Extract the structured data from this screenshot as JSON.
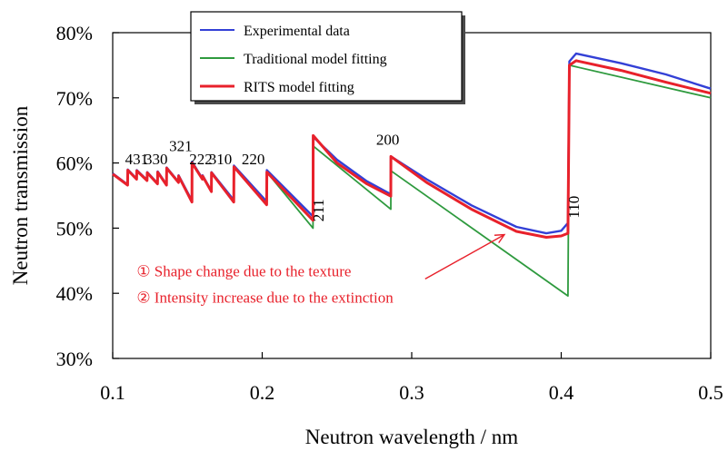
{
  "chart_data": {
    "type": "line",
    "title": "",
    "xlabel": "Neutron wavelength / nm",
    "ylabel": "Neutron transmission",
    "xlim": [
      0.1,
      0.5
    ],
    "ylim": [
      30,
      80
    ],
    "x_ticks": [
      {
        "value": 0.1,
        "label": "0.1"
      },
      {
        "value": 0.2,
        "label": "0.2"
      },
      {
        "value": 0.3,
        "label": "0.3"
      },
      {
        "value": 0.4,
        "label": "0.4"
      },
      {
        "value": 0.5,
        "label": "0.5"
      }
    ],
    "y_ticks": [
      {
        "value": 30,
        "label": "30%"
      },
      {
        "value": 40,
        "label": "40%"
      },
      {
        "value": 50,
        "label": "50%"
      },
      {
        "value": 60,
        "label": "60%"
      },
      {
        "value": 70,
        "label": "70%"
      },
      {
        "value": 80,
        "label": "80%"
      }
    ],
    "grid": false,
    "legend_position": "top-center",
    "series": [
      {
        "name": "Traditional model fitting",
        "color": "#2e9a3e",
        "x": [
          0.1,
          0.11,
          0.1101,
          0.116,
          0.1161,
          0.123,
          0.1231,
          0.13,
          0.1301,
          0.136,
          0.1361,
          0.144,
          0.1441,
          0.153,
          0.1531,
          0.16,
          0.1601,
          0.166,
          0.1661,
          0.181,
          0.1811,
          0.203,
          0.2031,
          0.234,
          0.2341,
          0.286,
          0.2861,
          0.4045,
          0.4055,
          0.5
        ],
        "y": [
          58.3,
          56.6,
          58.9,
          57.5,
          58.8,
          57.3,
          58.5,
          56.8,
          58.6,
          56.6,
          59.2,
          57.0,
          58.0,
          54.0,
          60.0,
          57.5,
          58.0,
          55.6,
          58.5,
          54.0,
          59.4,
          53.6,
          58.6,
          50.0,
          62.6,
          52.9,
          58.8,
          39.6,
          75.0,
          70.0
        ]
      },
      {
        "name": "Experimental data",
        "color": "#3340d6",
        "x": [
          0.1,
          0.11,
          0.1101,
          0.116,
          0.1161,
          0.123,
          0.1231,
          0.13,
          0.1301,
          0.136,
          0.1361,
          0.144,
          0.1441,
          0.153,
          0.1531,
          0.16,
          0.1601,
          0.166,
          0.1661,
          0.181,
          0.1811,
          0.203,
          0.2031,
          0.234,
          0.2341,
          0.25,
          0.27,
          0.286,
          0.2861,
          0.31,
          0.34,
          0.37,
          0.39,
          0.4,
          0.4045,
          0.4055,
          0.41,
          0.44,
          0.47,
          0.5
        ],
        "y": [
          58.4,
          56.7,
          59.0,
          57.6,
          58.9,
          57.4,
          58.6,
          56.9,
          58.7,
          56.7,
          59.3,
          57.1,
          58.1,
          54.2,
          60.2,
          57.6,
          58.1,
          55.7,
          58.6,
          54.3,
          59.6,
          54.1,
          58.9,
          51.8,
          64.0,
          60.5,
          57.2,
          55.2,
          61.0,
          57.5,
          53.5,
          50.2,
          49.2,
          49.6,
          50.8,
          75.6,
          76.8,
          75.3,
          73.6,
          71.4
        ]
      },
      {
        "name": "RITS model fitting",
        "color": "#e8212b",
        "x": [
          0.1,
          0.11,
          0.1101,
          0.116,
          0.1161,
          0.123,
          0.1231,
          0.13,
          0.1301,
          0.136,
          0.1361,
          0.144,
          0.1441,
          0.153,
          0.1531,
          0.16,
          0.1601,
          0.166,
          0.1661,
          0.181,
          0.1811,
          0.203,
          0.2031,
          0.234,
          0.2341,
          0.25,
          0.27,
          0.286,
          0.2861,
          0.31,
          0.34,
          0.37,
          0.39,
          0.4,
          0.4045,
          0.4055,
          0.41,
          0.44,
          0.47,
          0.5
        ],
        "y": [
          58.3,
          56.6,
          58.9,
          57.5,
          58.8,
          57.3,
          58.5,
          56.8,
          58.6,
          56.6,
          59.2,
          57.0,
          58.0,
          54.0,
          60.0,
          57.5,
          58.0,
          55.6,
          58.5,
          54.0,
          59.4,
          53.6,
          58.6,
          51.2,
          64.2,
          60.0,
          56.8,
          54.9,
          61.0,
          57.0,
          52.9,
          49.5,
          48.6,
          48.8,
          49.2,
          75.0,
          75.7,
          74.2,
          72.4,
          70.7
        ]
      }
    ],
    "peak_labels": [
      {
        "text": "431",
        "x": 0.116,
        "y": 59.8
      },
      {
        "text": "330",
        "x": 0.129,
        "y": 59.8
      },
      {
        "text": "321",
        "x": 0.1455,
        "y": 61.8
      },
      {
        "text": "222",
        "x": 0.159,
        "y": 59.8
      },
      {
        "text": "310",
        "x": 0.172,
        "y": 59.8
      },
      {
        "text": "220",
        "x": 0.194,
        "y": 59.8
      },
      {
        "text": "200",
        "x": 0.284,
        "y": 62.8
      },
      {
        "text": "211",
        "x": 0.241,
        "y": 51.0,
        "rotated": true
      },
      {
        "text": "110",
        "x": 0.412,
        "y": 51.5,
        "rotated": true
      }
    ],
    "annotations": [
      {
        "text": "① Shape change due to the texture",
        "x": 0.116,
        "y": 42.6,
        "color": "#e8212b"
      },
      {
        "text": "② Intensity increase due to the extinction",
        "x": 0.116,
        "y": 38.6,
        "color": "#e8212b"
      }
    ],
    "arrow": {
      "from_x": 0.309,
      "from_y": 42.2,
      "to_x": 0.362,
      "to_y": 49.0,
      "color": "#e8212b"
    }
  }
}
